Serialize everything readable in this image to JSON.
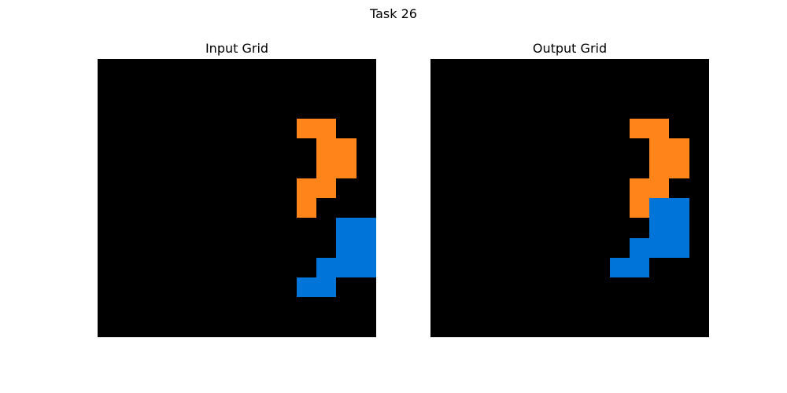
{
  "title": "Task 26",
  "colors": {
    "0": "#000000",
    "1": "#0074d9",
    "7": "#ff851b"
  },
  "panels": [
    {
      "label": "Input Grid",
      "grid": [
        [
          0,
          0,
          0,
          0,
          0,
          0,
          0,
          0,
          0,
          0,
          0,
          0,
          0,
          0
        ],
        [
          0,
          0,
          0,
          0,
          0,
          0,
          0,
          0,
          0,
          0,
          0,
          0,
          0,
          0
        ],
        [
          0,
          0,
          0,
          0,
          0,
          0,
          0,
          0,
          0,
          0,
          0,
          0,
          0,
          0
        ],
        [
          0,
          0,
          0,
          0,
          0,
          0,
          0,
          0,
          0,
          0,
          7,
          7,
          0,
          0
        ],
        [
          0,
          0,
          0,
          0,
          0,
          0,
          0,
          0,
          0,
          0,
          0,
          7,
          7,
          0
        ],
        [
          0,
          0,
          0,
          0,
          0,
          0,
          0,
          0,
          0,
          0,
          0,
          7,
          7,
          0
        ],
        [
          0,
          0,
          0,
          0,
          0,
          0,
          0,
          0,
          0,
          0,
          7,
          7,
          0,
          0
        ],
        [
          0,
          0,
          0,
          0,
          0,
          0,
          0,
          0,
          0,
          0,
          7,
          0,
          0,
          0
        ],
        [
          0,
          0,
          0,
          0,
          0,
          0,
          0,
          0,
          0,
          0,
          0,
          0,
          1,
          1
        ],
        [
          0,
          0,
          0,
          0,
          0,
          0,
          0,
          0,
          0,
          0,
          0,
          0,
          1,
          1
        ],
        [
          0,
          0,
          0,
          0,
          0,
          0,
          0,
          0,
          0,
          0,
          0,
          1,
          1,
          1
        ],
        [
          0,
          0,
          0,
          0,
          0,
          0,
          0,
          0,
          0,
          0,
          1,
          1,
          0,
          0
        ],
        [
          0,
          0,
          0,
          0,
          0,
          0,
          0,
          0,
          0,
          0,
          0,
          0,
          0,
          0
        ],
        [
          0,
          0,
          0,
          0,
          0,
          0,
          0,
          0,
          0,
          0,
          0,
          0,
          0,
          0
        ]
      ]
    },
    {
      "label": "Output Grid",
      "grid": [
        [
          0,
          0,
          0,
          0,
          0,
          0,
          0,
          0,
          0,
          0,
          0,
          0,
          0,
          0
        ],
        [
          0,
          0,
          0,
          0,
          0,
          0,
          0,
          0,
          0,
          0,
          0,
          0,
          0,
          0
        ],
        [
          0,
          0,
          0,
          0,
          0,
          0,
          0,
          0,
          0,
          0,
          0,
          0,
          0,
          0
        ],
        [
          0,
          0,
          0,
          0,
          0,
          0,
          0,
          0,
          0,
          0,
          7,
          7,
          0,
          0
        ],
        [
          0,
          0,
          0,
          0,
          0,
          0,
          0,
          0,
          0,
          0,
          0,
          7,
          7,
          0
        ],
        [
          0,
          0,
          0,
          0,
          0,
          0,
          0,
          0,
          0,
          0,
          0,
          7,
          7,
          0
        ],
        [
          0,
          0,
          0,
          0,
          0,
          0,
          0,
          0,
          0,
          0,
          7,
          7,
          0,
          0
        ],
        [
          0,
          0,
          0,
          0,
          0,
          0,
          0,
          0,
          0,
          0,
          7,
          1,
          1,
          0
        ],
        [
          0,
          0,
          0,
          0,
          0,
          0,
          0,
          0,
          0,
          0,
          0,
          1,
          1,
          0
        ],
        [
          0,
          0,
          0,
          0,
          0,
          0,
          0,
          0,
          0,
          0,
          1,
          1,
          1,
          0
        ],
        [
          0,
          0,
          0,
          0,
          0,
          0,
          0,
          0,
          0,
          1,
          1,
          0,
          0,
          0
        ],
        [
          0,
          0,
          0,
          0,
          0,
          0,
          0,
          0,
          0,
          0,
          0,
          0,
          0,
          0
        ],
        [
          0,
          0,
          0,
          0,
          0,
          0,
          0,
          0,
          0,
          0,
          0,
          0,
          0,
          0
        ],
        [
          0,
          0,
          0,
          0,
          0,
          0,
          0,
          0,
          0,
          0,
          0,
          0,
          0,
          0
        ]
      ]
    }
  ]
}
